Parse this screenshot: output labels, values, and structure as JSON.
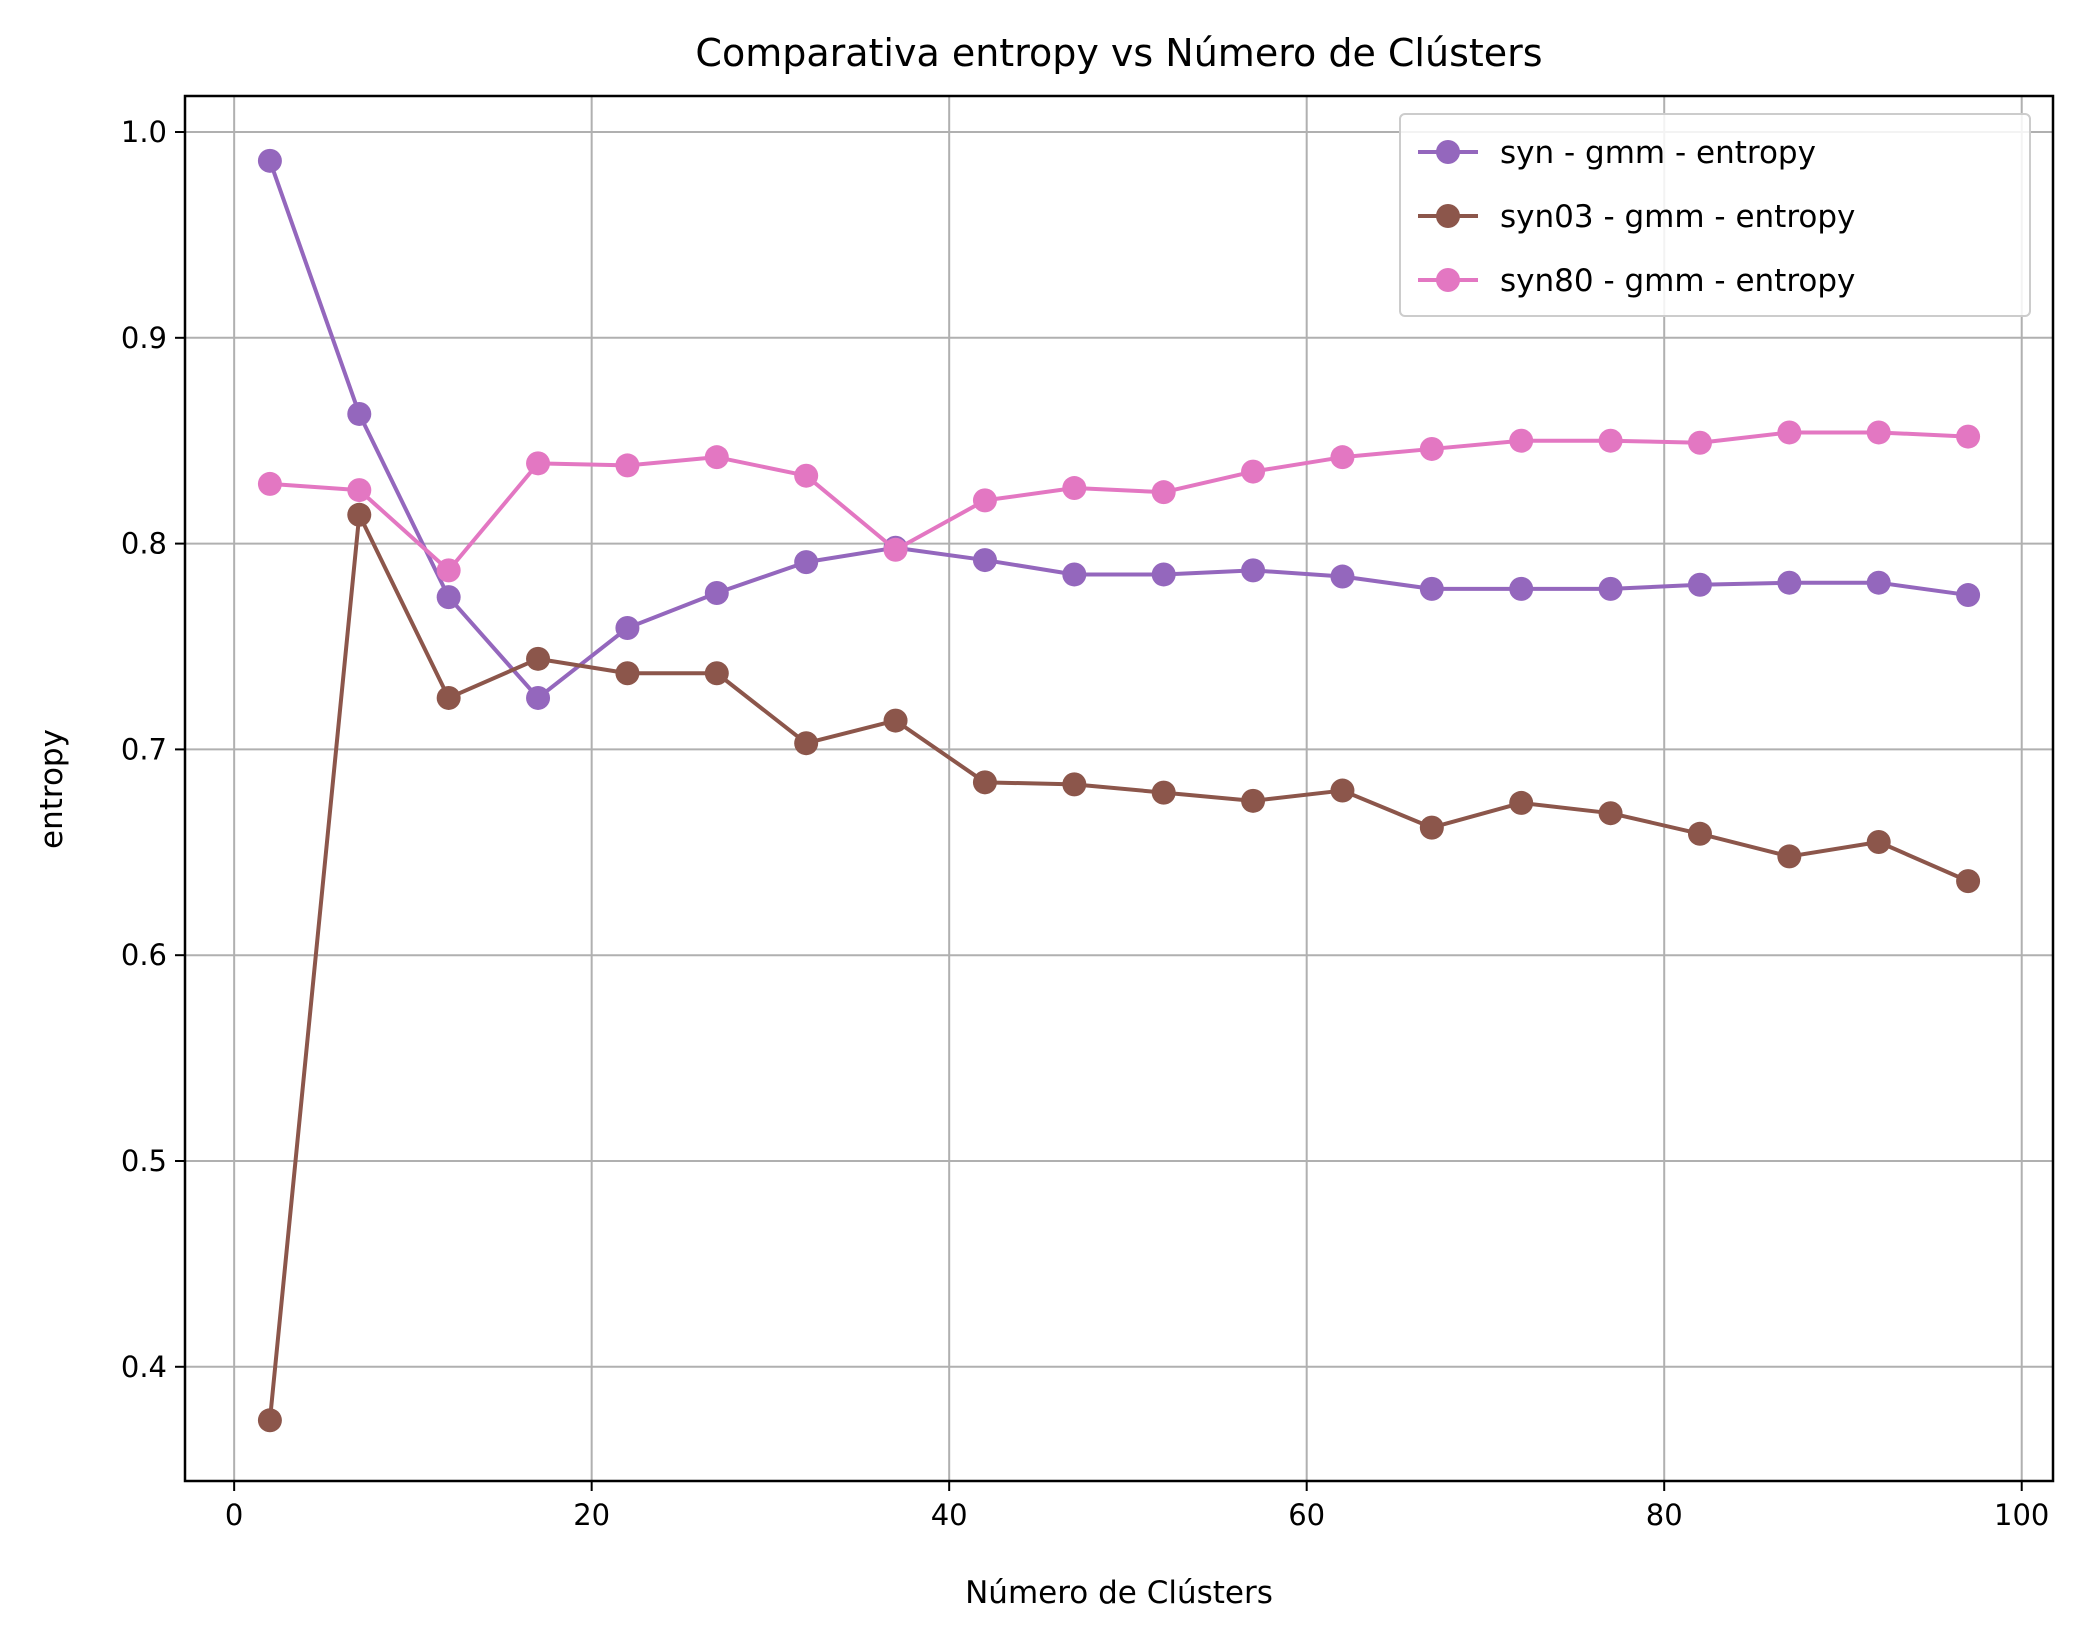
{
  "chart_data": {
    "type": "line",
    "title": "Comparativa entropy vs Número de Clústers",
    "xlabel": "Número de Clústers",
    "ylabel": "entropy",
    "xlim": [
      -2.75,
      101.75
    ],
    "ylim": [
      0.3445,
      1.0175
    ],
    "xticks": [
      0,
      20,
      40,
      60,
      80,
      100
    ],
    "yticks": [
      0.4,
      0.5,
      0.6,
      0.7,
      0.8,
      0.9,
      1.0
    ],
    "ytick_labels": [
      "0.4",
      "0.5",
      "0.6",
      "0.7",
      "0.8",
      "0.9",
      "1.0"
    ],
    "grid": true,
    "legend_position": "top-right",
    "x": [
      2,
      7,
      12,
      17,
      22,
      27,
      32,
      37,
      42,
      47,
      52,
      57,
      62,
      67,
      72,
      77,
      82,
      87,
      92,
      97
    ],
    "series": [
      {
        "name": "syn - gmm - entropy",
        "color": "#9467bd",
        "values": [
          0.986,
          0.863,
          0.774,
          0.725,
          0.759,
          0.776,
          0.791,
          0.798,
          0.792,
          0.785,
          0.785,
          0.787,
          0.784,
          0.778,
          0.778,
          0.778,
          0.78,
          0.781,
          0.781,
          0.775
        ]
      },
      {
        "name": "syn03 - gmm - entropy",
        "color": "#8c564b",
        "values": [
          0.374,
          0.814,
          0.725,
          0.744,
          0.737,
          0.737,
          0.703,
          0.714,
          0.684,
          0.683,
          0.679,
          0.675,
          0.68,
          0.662,
          0.674,
          0.669,
          0.659,
          0.648,
          0.655,
          0.636
        ]
      },
      {
        "name": "syn80 - gmm - entropy",
        "color": "#e377c2",
        "values": [
          0.829,
          0.826,
          0.787,
          0.839,
          0.838,
          0.842,
          0.833,
          0.797,
          0.821,
          0.827,
          0.825,
          0.835,
          0.842,
          0.846,
          0.85,
          0.85,
          0.849,
          0.854,
          0.854,
          0.852
        ]
      }
    ]
  }
}
